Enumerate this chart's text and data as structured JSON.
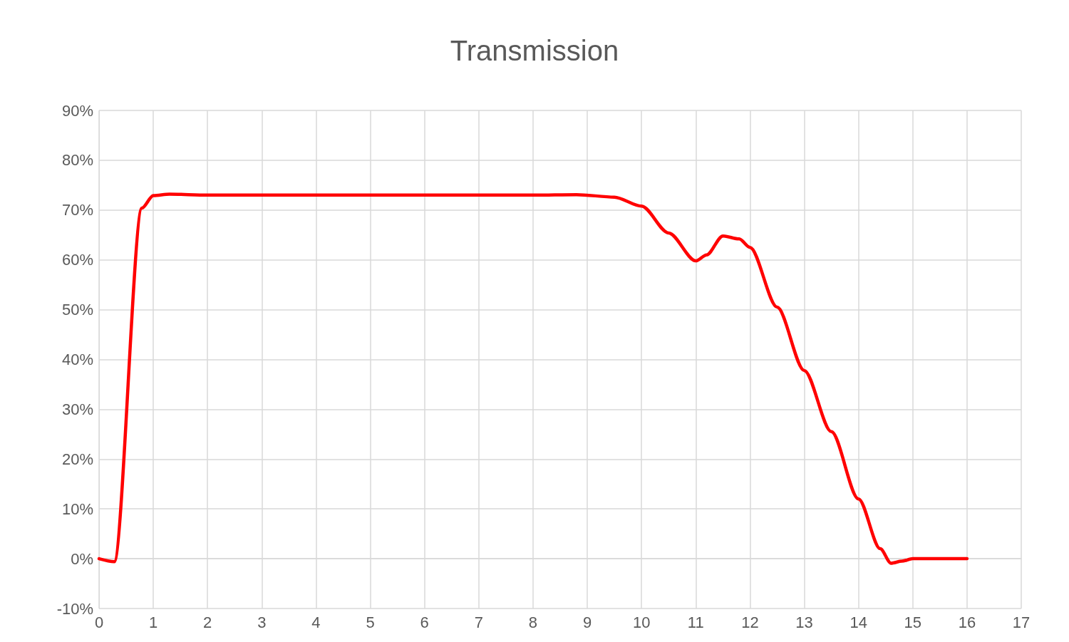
{
  "chart_data": {
    "type": "line",
    "title": "Transmission",
    "x": [
      0,
      0.28,
      0.79,
      1.0,
      1.3,
      2,
      3,
      4,
      5,
      6,
      7,
      8,
      8.8,
      9.5,
      10,
      10.5,
      11,
      11.2,
      11.5,
      11.8,
      12,
      12.5,
      13,
      13.5,
      14,
      14.4,
      14.6,
      14.8,
      15,
      16
    ],
    "series": [
      {
        "color": "#ff0000",
        "values": [
          0,
          -0.006,
          0.704,
          0.729,
          0.732,
          0.73,
          0.73,
          0.73,
          0.73,
          0.73,
          0.73,
          0.73,
          0.731,
          0.726,
          0.708,
          0.654,
          0.598,
          0.61,
          0.648,
          0.642,
          0.625,
          0.505,
          0.378,
          0.255,
          0.12,
          0.02,
          -0.009,
          -0.005,
          0,
          0
        ]
      }
    ],
    "xlim": [
      0,
      17
    ],
    "xticks": [
      0,
      1,
      2,
      3,
      4,
      5,
      6,
      7,
      8,
      9,
      10,
      11,
      12,
      13,
      14,
      15,
      16,
      17
    ],
    "ylim": [
      -0.1,
      0.9
    ],
    "yticks": [
      {
        "value": -0.1,
        "label": "-10%"
      },
      {
        "value": 0,
        "label": "0%"
      },
      {
        "value": 0.1,
        "label": "10%"
      },
      {
        "value": 0.2,
        "label": "20%"
      },
      {
        "value": 0.3,
        "label": "30%"
      },
      {
        "value": 0.4,
        "label": "40%"
      },
      {
        "value": 0.5,
        "label": "50%"
      },
      {
        "value": 0.6,
        "label": "60%"
      },
      {
        "value": 0.7,
        "label": "70%"
      },
      {
        "value": 0.8,
        "label": "80%"
      },
      {
        "value": 0.9,
        "label": "90%"
      }
    ],
    "grid": true,
    "marker": "none",
    "line_style": "solid"
  }
}
